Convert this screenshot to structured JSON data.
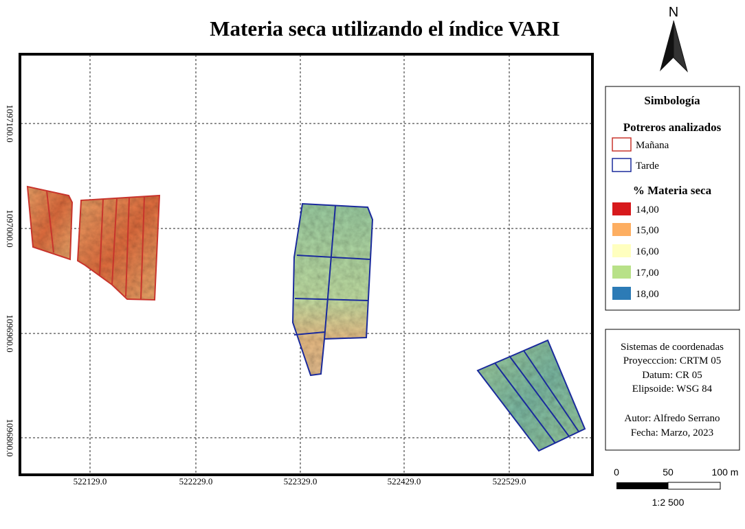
{
  "title": "Materia seca utilizando el índice VARI",
  "north": "N",
  "map": {
    "x_labels": [
      "522129.0",
      "522229.0",
      "522329.0",
      "522429.0",
      "522529.0"
    ],
    "y_labels": [
      "1097100.0",
      "1097000.0",
      "1096900.0",
      "1096800.0"
    ]
  },
  "legend": {
    "title": "Simbología",
    "groups": [
      {
        "title": "Potreros analizados",
        "items": [
          "Mañana",
          "Tarde"
        ]
      },
      {
        "title": "% Materia seca",
        "items": [
          "14,00",
          "15,00",
          "16,00",
          "17,00",
          "18,00"
        ]
      }
    ]
  },
  "info": {
    "lines": [
      "Sistemas de coordenadas",
      "Proyecccion: CRTM 05",
      "Datum: CR 05",
      "Elipsoide: WSG 84",
      "Autor: Alfredo Serrano",
      "Fecha: Marzo, 2023"
    ]
  },
  "scale": {
    "labels": [
      "0",
      "50",
      "100 m"
    ],
    "ratio": "1:2 500"
  }
}
